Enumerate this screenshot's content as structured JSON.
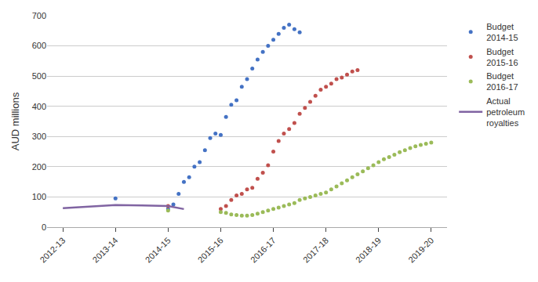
{
  "chart_data": {
    "type": "line",
    "y_label": "AUD millions",
    "xlim": [
      -0.3,
      7.3
    ],
    "xticks": [
      {
        "value": 0,
        "label": "2012-13"
      },
      {
        "value": 1,
        "label": "2013-14"
      },
      {
        "value": 2,
        "label": "2014-15"
      },
      {
        "value": 3,
        "label": "2015-16"
      },
      {
        "value": 4,
        "label": "2016-17"
      },
      {
        "value": 5,
        "label": "2017-18"
      },
      {
        "value": 6,
        "label": "2018-19"
      },
      {
        "value": 7,
        "label": "2019-20"
      }
    ],
    "ylim": [
      0,
      700
    ],
    "yticks": [
      0,
      100,
      200,
      300,
      400,
      500,
      600,
      700
    ],
    "grid": "y",
    "legend": "right",
    "series": [
      {
        "name": "Budget\n2014-15",
        "color": "#4472C4",
        "line_style": "none",
        "marker": "circle",
        "x": [
          1.0,
          2.0,
          2.1,
          2.2,
          2.3,
          2.4,
          2.5,
          2.6,
          2.7,
          2.8,
          2.9,
          3.0,
          3.1,
          3.2,
          3.3,
          3.4,
          3.5,
          3.6,
          3.7,
          3.8,
          3.9,
          4.0,
          4.1,
          4.2,
          4.3,
          4.4,
          4.5
        ],
        "values": [
          95,
          60,
          75,
          110,
          150,
          165,
          200,
          215,
          255,
          295,
          310,
          305,
          365,
          405,
          420,
          465,
          490,
          525,
          555,
          580,
          600,
          620,
          640,
          660,
          670,
          655,
          645
        ]
      },
      {
        "name": "Budget\n2015-16",
        "color": "#C0504D",
        "line_style": "none",
        "marker": "circle",
        "x": [
          2.0,
          3.0,
          3.1,
          3.2,
          3.3,
          3.4,
          3.5,
          3.6,
          3.7,
          3.8,
          3.9,
          4.0,
          4.1,
          4.2,
          4.3,
          4.4,
          4.5,
          4.6,
          4.7,
          4.8,
          4.9,
          5.0,
          5.1,
          5.2,
          5.3,
          5.4,
          5.5,
          5.6
        ],
        "values": [
          70,
          60,
          70,
          90,
          105,
          110,
          125,
          130,
          160,
          180,
          205,
          250,
          285,
          310,
          325,
          345,
          375,
          395,
          415,
          435,
          455,
          465,
          475,
          490,
          495,
          505,
          515,
          520
        ]
      },
      {
        "name": "Budget\n2016-17",
        "color": "#9BBB59",
        "line_style": "none",
        "marker": "circle",
        "x": [
          2.0,
          3.0,
          3.1,
          3.2,
          3.3,
          3.4,
          3.5,
          3.6,
          3.7,
          3.8,
          3.9,
          4.0,
          4.1,
          4.2,
          4.3,
          4.4,
          4.5,
          4.6,
          4.7,
          4.8,
          4.9,
          5.0,
          5.1,
          5.2,
          5.3,
          5.4,
          5.5,
          5.6,
          5.7,
          5.8,
          5.9,
          6.0,
          6.1,
          6.2,
          6.3,
          6.4,
          6.5,
          6.6,
          6.7,
          6.8,
          6.9,
          7.0
        ],
        "values": [
          55,
          50,
          47,
          42,
          40,
          38,
          38,
          40,
          45,
          50,
          55,
          60,
          65,
          70,
          75,
          80,
          90,
          95,
          100,
          105,
          110,
          115,
          125,
          135,
          145,
          155,
          165,
          175,
          185,
          195,
          205,
          215,
          225,
          232,
          240,
          248,
          255,
          262,
          268,
          272,
          276,
          280
        ]
      },
      {
        "name": "Actual\npetroleum\nroyalties",
        "color": "#8064A2",
        "line_style": "solid",
        "x": [
          0.0,
          0.5,
          1.0,
          1.5,
          2.0,
          2.3
        ],
        "values": [
          63,
          68,
          73,
          72,
          70,
          60
        ]
      }
    ]
  }
}
